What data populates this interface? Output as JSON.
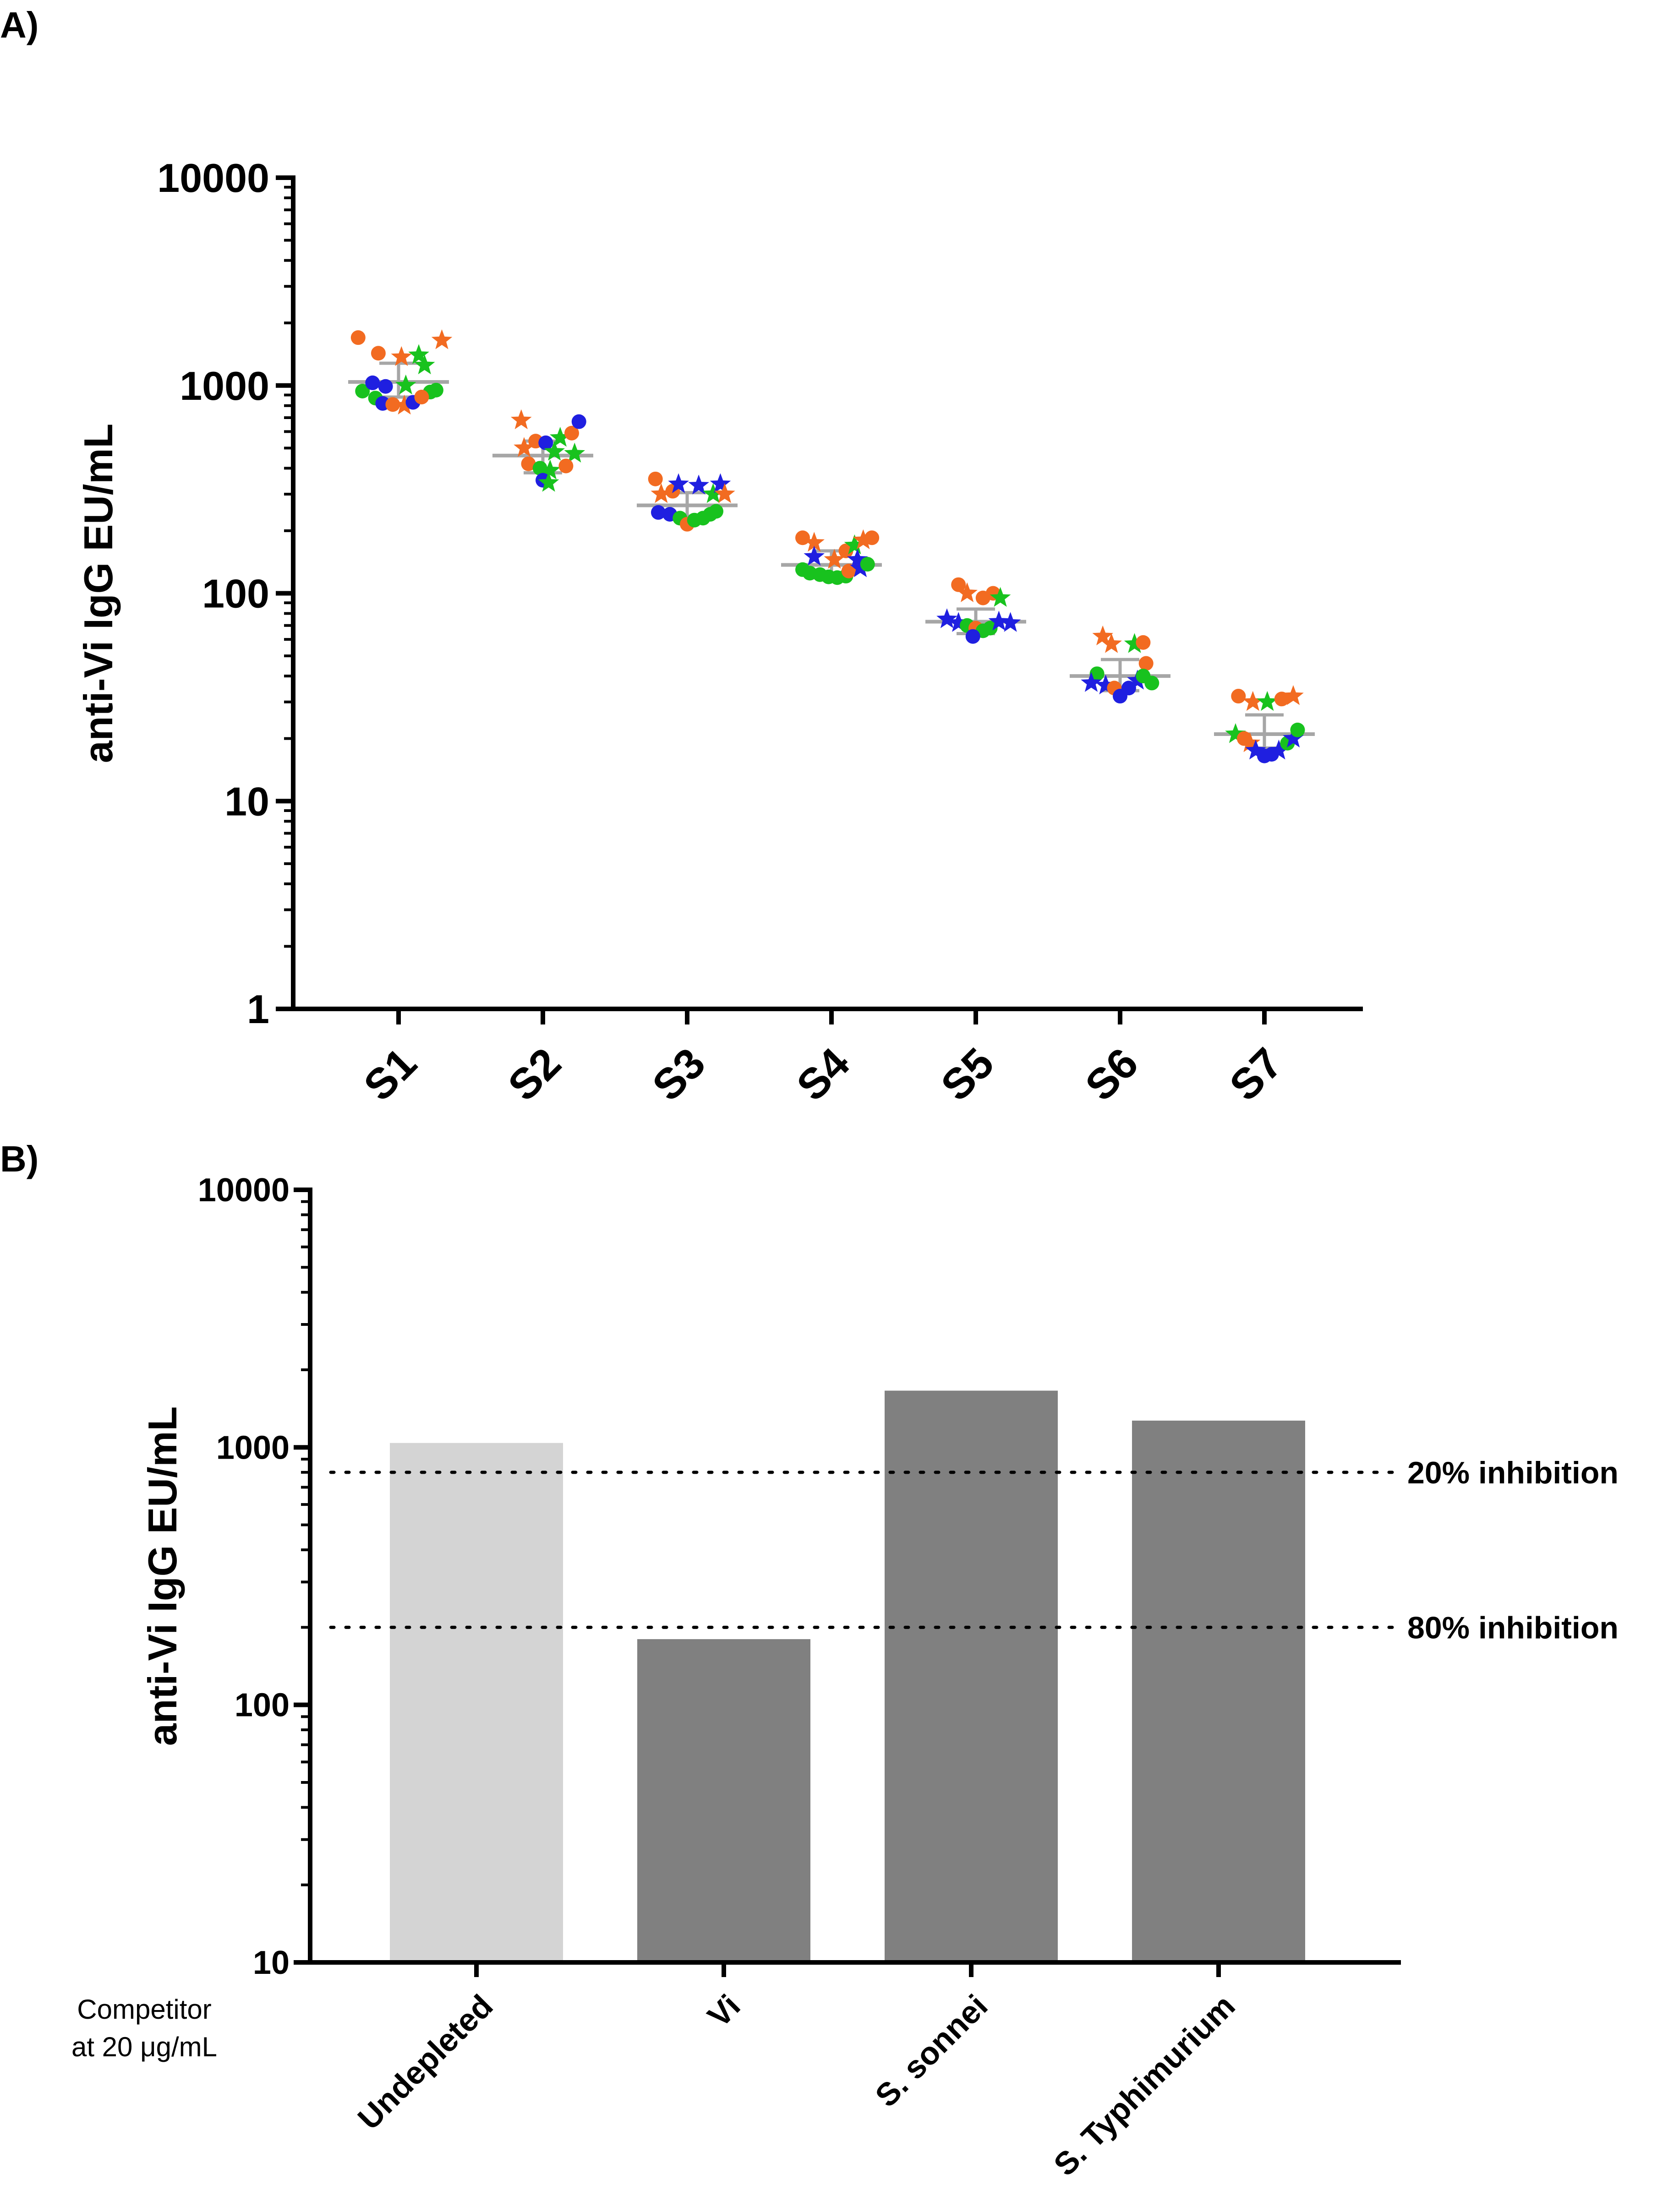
{
  "figure": {
    "panel_a_label": "A)",
    "panel_b_label": "B)",
    "competitor_note_line1": "Competitor",
    "competitor_note_line2": "at 20 μg/mL"
  },
  "chart_data": [
    {
      "type": "scatter",
      "panel": "A)",
      "title": "",
      "xlabel": "",
      "ylabel": "anti-Vi IgG EU/mL",
      "yscale": "log",
      "ylim": [
        1,
        10000
      ],
      "yticks": [
        1,
        10,
        100,
        1000,
        10000
      ],
      "ytick_labels": [
        "1",
        "10",
        "100",
        "1000",
        "10000"
      ],
      "categories": [
        "S1",
        "S2",
        "S3",
        "S4",
        "S5",
        "S6",
        "S7"
      ],
      "summary": {
        "mean": [
          1040,
          460,
          265,
          137,
          73,
          40,
          21
        ],
        "sd_low": [
          880,
          380,
          235,
          120,
          64,
          34,
          18
        ],
        "sd_high": [
          1280,
          540,
          305,
          160,
          84,
          48,
          26
        ]
      },
      "marker_colors": {
        "orange": "#f26b21",
        "green": "#18c21e",
        "blue": "#1f1fe0",
        "grey": "#a6a6a6"
      },
      "points": [
        {
          "cat": 0,
          "dx": -0.28,
          "y": 1700,
          "c": "orange",
          "m": "circle"
        },
        {
          "cat": 0,
          "dx": -0.14,
          "y": 1430,
          "c": "orange",
          "m": "circle"
        },
        {
          "cat": 0,
          "dx": 0.02,
          "y": 1370,
          "c": "orange",
          "m": "star"
        },
        {
          "cat": 0,
          "dx": 0.14,
          "y": 1400,
          "c": "green",
          "m": "star"
        },
        {
          "cat": 0,
          "dx": 0.18,
          "y": 1250,
          "c": "green",
          "m": "star"
        },
        {
          "cat": 0,
          "dx": 0.3,
          "y": 1650,
          "c": "orange",
          "m": "star"
        },
        {
          "cat": 0,
          "dx": -0.25,
          "y": 940,
          "c": "green",
          "m": "circle"
        },
        {
          "cat": 0,
          "dx": -0.18,
          "y": 1030,
          "c": "blue",
          "m": "circle"
        },
        {
          "cat": 0,
          "dx": -0.09,
          "y": 990,
          "c": "blue",
          "m": "circle"
        },
        {
          "cat": 0,
          "dx": 0.05,
          "y": 1000,
          "c": "green",
          "m": "star"
        },
        {
          "cat": 0,
          "dx": 0.22,
          "y": 930,
          "c": "green",
          "m": "circle"
        },
        {
          "cat": 0,
          "dx": 0.26,
          "y": 950,
          "c": "green",
          "m": "circle"
        },
        {
          "cat": 0,
          "dx": -0.16,
          "y": 870,
          "c": "green",
          "m": "circle"
        },
        {
          "cat": 0,
          "dx": -0.11,
          "y": 820,
          "c": "blue",
          "m": "circle"
        },
        {
          "cat": 0,
          "dx": -0.04,
          "y": 810,
          "c": "orange",
          "m": "circle"
        },
        {
          "cat": 0,
          "dx": 0.04,
          "y": 800,
          "c": "orange",
          "m": "star"
        },
        {
          "cat": 0,
          "dx": 0.1,
          "y": 830,
          "c": "blue",
          "m": "circle"
        },
        {
          "cat": 0,
          "dx": 0.16,
          "y": 880,
          "c": "orange",
          "m": "circle"
        },
        {
          "cat": 1,
          "dx": -0.15,
          "y": 680,
          "c": "orange",
          "m": "star"
        },
        {
          "cat": 1,
          "dx": -0.05,
          "y": 540,
          "c": "orange",
          "m": "circle"
        },
        {
          "cat": 1,
          "dx": 0.02,
          "y": 530,
          "c": "blue",
          "m": "circle"
        },
        {
          "cat": 1,
          "dx": 0.12,
          "y": 560,
          "c": "green",
          "m": "star"
        },
        {
          "cat": 1,
          "dx": 0.2,
          "y": 590,
          "c": "orange",
          "m": "circle"
        },
        {
          "cat": 1,
          "dx": 0.25,
          "y": 670,
          "c": "blue",
          "m": "circle"
        },
        {
          "cat": 1,
          "dx": -0.13,
          "y": 500,
          "c": "orange",
          "m": "star"
        },
        {
          "cat": 1,
          "dx": -0.1,
          "y": 420,
          "c": "orange",
          "m": "circle"
        },
        {
          "cat": 1,
          "dx": 0.08,
          "y": 480,
          "c": "green",
          "m": "star"
        },
        {
          "cat": 1,
          "dx": 0.22,
          "y": 470,
          "c": "green",
          "m": "star"
        },
        {
          "cat": 1,
          "dx": -0.02,
          "y": 400,
          "c": "green",
          "m": "circle"
        },
        {
          "cat": 1,
          "dx": 0.05,
          "y": 390,
          "c": "green",
          "m": "star"
        },
        {
          "cat": 1,
          "dx": 0.16,
          "y": 410,
          "c": "orange",
          "m": "circle"
        },
        {
          "cat": 1,
          "dx": 0.0,
          "y": 350,
          "c": "blue",
          "m": "circle"
        },
        {
          "cat": 1,
          "dx": 0.04,
          "y": 340,
          "c": "green",
          "m": "star"
        },
        {
          "cat": 2,
          "dx": -0.22,
          "y": 355,
          "c": "orange",
          "m": "circle"
        },
        {
          "cat": 2,
          "dx": -0.18,
          "y": 300,
          "c": "orange",
          "m": "star"
        },
        {
          "cat": 2,
          "dx": -0.1,
          "y": 310,
          "c": "orange",
          "m": "circle"
        },
        {
          "cat": 2,
          "dx": -0.06,
          "y": 335,
          "c": "blue",
          "m": "star"
        },
        {
          "cat": 2,
          "dx": 0.08,
          "y": 330,
          "c": "blue",
          "m": "star"
        },
        {
          "cat": 2,
          "dx": 0.18,
          "y": 300,
          "c": "green",
          "m": "star"
        },
        {
          "cat": 2,
          "dx": 0.23,
          "y": 335,
          "c": "blue",
          "m": "star"
        },
        {
          "cat": 2,
          "dx": 0.26,
          "y": 300,
          "c": "orange",
          "m": "star"
        },
        {
          "cat": 2,
          "dx": -0.2,
          "y": 245,
          "c": "blue",
          "m": "circle"
        },
        {
          "cat": 2,
          "dx": -0.12,
          "y": 240,
          "c": "blue",
          "m": "circle"
        },
        {
          "cat": 2,
          "dx": -0.05,
          "y": 230,
          "c": "green",
          "m": "circle"
        },
        {
          "cat": 2,
          "dx": 0.0,
          "y": 215,
          "c": "orange",
          "m": "circle"
        },
        {
          "cat": 2,
          "dx": 0.05,
          "y": 225,
          "c": "green",
          "m": "circle"
        },
        {
          "cat": 2,
          "dx": 0.11,
          "y": 230,
          "c": "green",
          "m": "circle"
        },
        {
          "cat": 2,
          "dx": 0.16,
          "y": 240,
          "c": "green",
          "m": "circle"
        },
        {
          "cat": 2,
          "dx": 0.2,
          "y": 248,
          "c": "green",
          "m": "circle"
        },
        {
          "cat": 3,
          "dx": -0.2,
          "y": 185,
          "c": "orange",
          "m": "circle"
        },
        {
          "cat": 3,
          "dx": -0.12,
          "y": 175,
          "c": "orange",
          "m": "star"
        },
        {
          "cat": 3,
          "dx": -0.12,
          "y": 150,
          "c": "blue",
          "m": "star"
        },
        {
          "cat": 3,
          "dx": 0.02,
          "y": 145,
          "c": "orange",
          "m": "star"
        },
        {
          "cat": 3,
          "dx": 0.1,
          "y": 160,
          "c": "orange",
          "m": "circle"
        },
        {
          "cat": 3,
          "dx": 0.16,
          "y": 170,
          "c": "green",
          "m": "star"
        },
        {
          "cat": 3,
          "dx": 0.22,
          "y": 180,
          "c": "orange",
          "m": "star"
        },
        {
          "cat": 3,
          "dx": 0.28,
          "y": 185,
          "c": "orange",
          "m": "circle"
        },
        {
          "cat": 3,
          "dx": 0.18,
          "y": 145,
          "c": "blue",
          "m": "star"
        },
        {
          "cat": 3,
          "dx": -0.2,
          "y": 130,
          "c": "green",
          "m": "circle"
        },
        {
          "cat": 3,
          "dx": -0.15,
          "y": 125,
          "c": "green",
          "m": "circle"
        },
        {
          "cat": 3,
          "dx": -0.08,
          "y": 123,
          "c": "green",
          "m": "circle"
        },
        {
          "cat": 3,
          "dx": -0.02,
          "y": 120,
          "c": "green",
          "m": "circle"
        },
        {
          "cat": 3,
          "dx": 0.04,
          "y": 119,
          "c": "green",
          "m": "circle"
        },
        {
          "cat": 3,
          "dx": 0.1,
          "y": 121,
          "c": "green",
          "m": "circle"
        },
        {
          "cat": 3,
          "dx": 0.12,
          "y": 128,
          "c": "orange",
          "m": "circle"
        },
        {
          "cat": 3,
          "dx": 0.2,
          "y": 132,
          "c": "blue",
          "m": "star"
        },
        {
          "cat": 3,
          "dx": 0.25,
          "y": 138,
          "c": "green",
          "m": "circle"
        },
        {
          "cat": 4,
          "dx": -0.12,
          "y": 110,
          "c": "orange",
          "m": "circle"
        },
        {
          "cat": 4,
          "dx": -0.06,
          "y": 100,
          "c": "orange",
          "m": "star"
        },
        {
          "cat": 4,
          "dx": 0.05,
          "y": 95,
          "c": "orange",
          "m": "circle"
        },
        {
          "cat": 4,
          "dx": 0.12,
          "y": 100,
          "c": "orange",
          "m": "circle"
        },
        {
          "cat": 4,
          "dx": 0.17,
          "y": 95,
          "c": "green",
          "m": "star"
        },
        {
          "cat": 4,
          "dx": -0.2,
          "y": 75,
          "c": "blue",
          "m": "star"
        },
        {
          "cat": 4,
          "dx": -0.12,
          "y": 72,
          "c": "blue",
          "m": "star"
        },
        {
          "cat": 4,
          "dx": -0.06,
          "y": 70,
          "c": "green",
          "m": "circle"
        },
        {
          "cat": 4,
          "dx": 0.0,
          "y": 68,
          "c": "orange",
          "m": "circle"
        },
        {
          "cat": 4,
          "dx": 0.05,
          "y": 66,
          "c": "green",
          "m": "circle"
        },
        {
          "cat": 4,
          "dx": 0.1,
          "y": 68,
          "c": "green",
          "m": "circle"
        },
        {
          "cat": 4,
          "dx": 0.16,
          "y": 73,
          "c": "blue",
          "m": "star"
        },
        {
          "cat": 4,
          "dx": 0.24,
          "y": 72,
          "c": "blue",
          "m": "star"
        },
        {
          "cat": 4,
          "dx": -0.02,
          "y": 62,
          "c": "blue",
          "m": "circle"
        },
        {
          "cat": 5,
          "dx": -0.12,
          "y": 62,
          "c": "orange",
          "m": "star"
        },
        {
          "cat": 5,
          "dx": -0.06,
          "y": 57,
          "c": "orange",
          "m": "star"
        },
        {
          "cat": 5,
          "dx": 0.1,
          "y": 57,
          "c": "green",
          "m": "star"
        },
        {
          "cat": 5,
          "dx": 0.16,
          "y": 58,
          "c": "orange",
          "m": "circle"
        },
        {
          "cat": 5,
          "dx": 0.18,
          "y": 46,
          "c": "orange",
          "m": "circle"
        },
        {
          "cat": 5,
          "dx": -0.16,
          "y": 41,
          "c": "green",
          "m": "circle"
        },
        {
          "cat": 5,
          "dx": -0.2,
          "y": 37,
          "c": "blue",
          "m": "star"
        },
        {
          "cat": 5,
          "dx": -0.1,
          "y": 36,
          "c": "blue",
          "m": "star"
        },
        {
          "cat": 5,
          "dx": -0.04,
          "y": 35,
          "c": "orange",
          "m": "circle"
        },
        {
          "cat": 5,
          "dx": 0.0,
          "y": 32,
          "c": "blue",
          "m": "circle"
        },
        {
          "cat": 5,
          "dx": 0.06,
          "y": 35,
          "c": "blue",
          "m": "circle"
        },
        {
          "cat": 5,
          "dx": 0.12,
          "y": 38,
          "c": "blue",
          "m": "star"
        },
        {
          "cat": 5,
          "dx": 0.16,
          "y": 40,
          "c": "green",
          "m": "circle"
        },
        {
          "cat": 5,
          "dx": 0.22,
          "y": 37,
          "c": "green",
          "m": "circle"
        },
        {
          "cat": 6,
          "dx": -0.18,
          "y": 32,
          "c": "orange",
          "m": "circle"
        },
        {
          "cat": 6,
          "dx": -0.08,
          "y": 30,
          "c": "orange",
          "m": "star"
        },
        {
          "cat": 6,
          "dx": 0.02,
          "y": 30,
          "c": "green",
          "m": "star"
        },
        {
          "cat": 6,
          "dx": 0.12,
          "y": 31,
          "c": "orange",
          "m": "circle"
        },
        {
          "cat": 6,
          "dx": 0.2,
          "y": 32,
          "c": "orange",
          "m": "star"
        },
        {
          "cat": 6,
          "dx": -0.2,
          "y": 21,
          "c": "green",
          "m": "star"
        },
        {
          "cat": 6,
          "dx": -0.14,
          "y": 20,
          "c": "orange",
          "m": "circle"
        },
        {
          "cat": 6,
          "dx": -0.1,
          "y": 19,
          "c": "orange",
          "m": "star"
        },
        {
          "cat": 6,
          "dx": -0.06,
          "y": 17.5,
          "c": "blue",
          "m": "star"
        },
        {
          "cat": 6,
          "dx": 0.0,
          "y": 16.5,
          "c": "blue",
          "m": "circle"
        },
        {
          "cat": 6,
          "dx": 0.05,
          "y": 16.8,
          "c": "blue",
          "m": "circle"
        },
        {
          "cat": 6,
          "dx": 0.1,
          "y": 17.5,
          "c": "blue",
          "m": "star"
        },
        {
          "cat": 6,
          "dx": 0.16,
          "y": 19,
          "c": "green",
          "m": "circle"
        },
        {
          "cat": 6,
          "dx": 0.2,
          "y": 20,
          "c": "blue",
          "m": "star"
        },
        {
          "cat": 6,
          "dx": 0.23,
          "y": 22,
          "c": "green",
          "m": "circle"
        }
      ]
    },
    {
      "type": "bar",
      "panel": "B)",
      "title": "",
      "xlabel": "",
      "ylabel": "anti-Vi IgG EU/mL",
      "yscale": "log",
      "ylim": [
        10,
        10000
      ],
      "yticks": [
        10,
        100,
        1000,
        10000
      ],
      "ytick_labels": [
        "10",
        "100",
        "1000",
        "10000"
      ],
      "categories": [
        "Undepleted",
        "Vi",
        "S. sonnei",
        "S. Typhimurium"
      ],
      "values": [
        1040,
        180,
        1660,
        1270
      ],
      "bar_colors": [
        "#d4d4d4",
        "#808080",
        "#808080",
        "#808080"
      ],
      "reference_lines": [
        {
          "label": "20% inhibition",
          "value": 800
        },
        {
          "label": "80% inhibition",
          "value": 200
        }
      ]
    }
  ]
}
